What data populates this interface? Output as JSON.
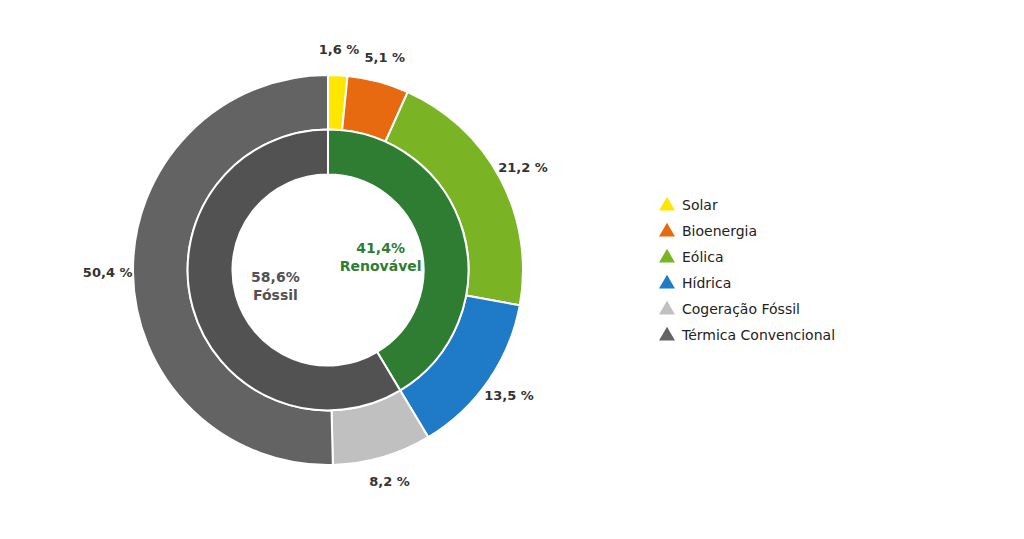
{
  "chart_data": {
    "type": "donut",
    "series": [
      {
        "categories": [
          "Solar",
          "Bioenergia",
          "Eólica",
          "Hídrica",
          "Cogeração Fóssil",
          "Térmica Convencional"
        ],
        "values": [
          1.6,
          5.1,
          21.2,
          13.5,
          8.2,
          50.4
        ],
        "colors": [
          "#FFE600",
          "#E86A10",
          "#7AB424",
          "#1F7BC8",
          "#C0C0C0",
          "#636363"
        ],
        "value_labels": [
          "1,6 %",
          "5,1 %",
          "21,2 %",
          "13,5 %",
          "8,2 %",
          "50,4 %"
        ]
      },
      {
        "categories": [
          "Renovável",
          "Fóssil"
        ],
        "values": [
          41.4,
          58.6
        ],
        "colors": [
          "#2E7D32",
          "#525252"
        ],
        "value_labels": [
          "41,4%",
          "58,6%"
        ]
      }
    ],
    "data_labels": true,
    "legend": "right"
  }
}
